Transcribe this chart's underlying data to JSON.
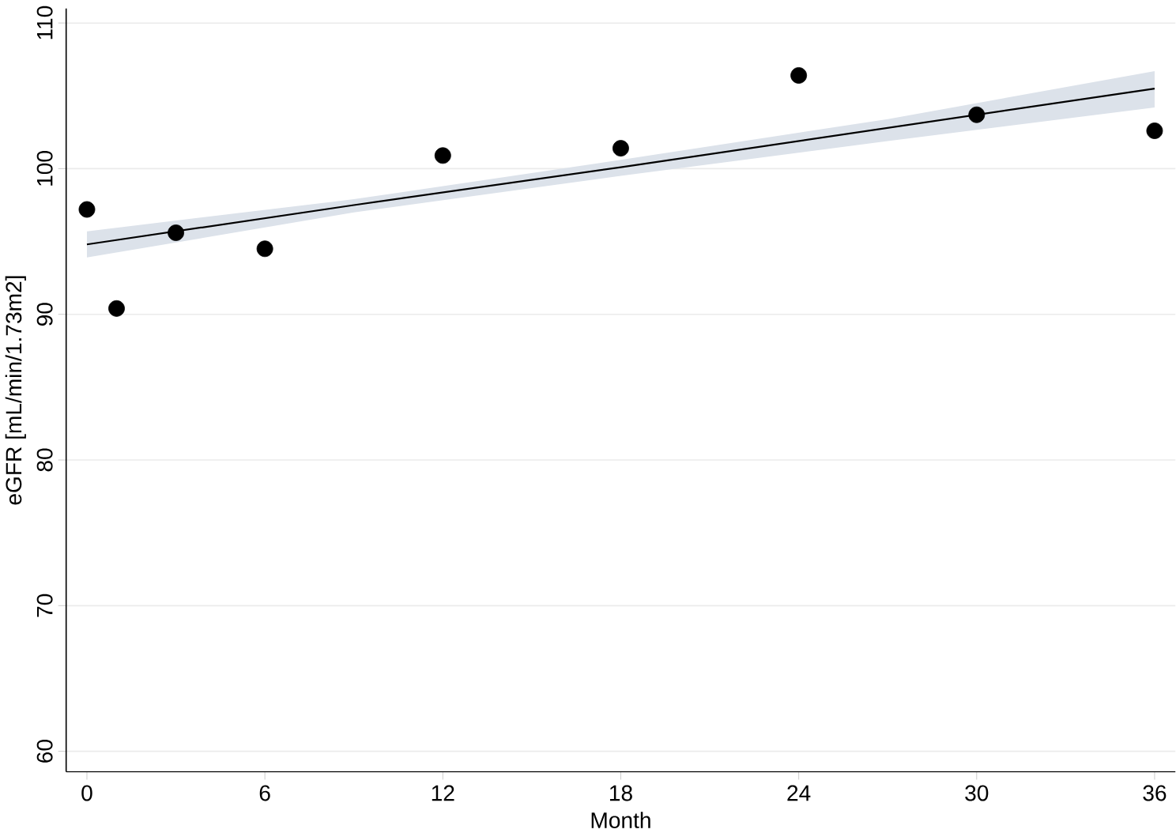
{
  "chart_data": {
    "type": "scatter",
    "xlabel": "Month",
    "ylabel": "eGFR [mL/min/1.73m2]",
    "xlim": [
      -0.7,
      36.7
    ],
    "ylim": [
      58.6,
      111
    ],
    "xticks": [
      0,
      6,
      12,
      18,
      24,
      30,
      36
    ],
    "yticks": [
      60,
      70,
      80,
      90,
      100,
      110
    ],
    "grid": "y",
    "series": [
      {
        "marker": "circle",
        "color": "#000000",
        "x": [
          0,
          1,
          3,
          6,
          12,
          18,
          24,
          30,
          36
        ],
        "values": [
          97.2,
          90.4,
          95.6,
          94.5,
          100.9,
          101.4,
          106.4,
          103.7,
          102.6
        ]
      },
      {
        "type": "line",
        "marker": "none",
        "color": "#000000",
        "x": [
          0,
          9,
          18,
          27,
          36
        ],
        "values": [
          94.8,
          97.5,
          100.1,
          102.8,
          105.5
        ],
        "lower": [
          93.9,
          97.0,
          99.5,
          101.9,
          104.2
        ],
        "upper": [
          95.7,
          97.9,
          100.6,
          103.4,
          106.7
        ]
      }
    ]
  }
}
